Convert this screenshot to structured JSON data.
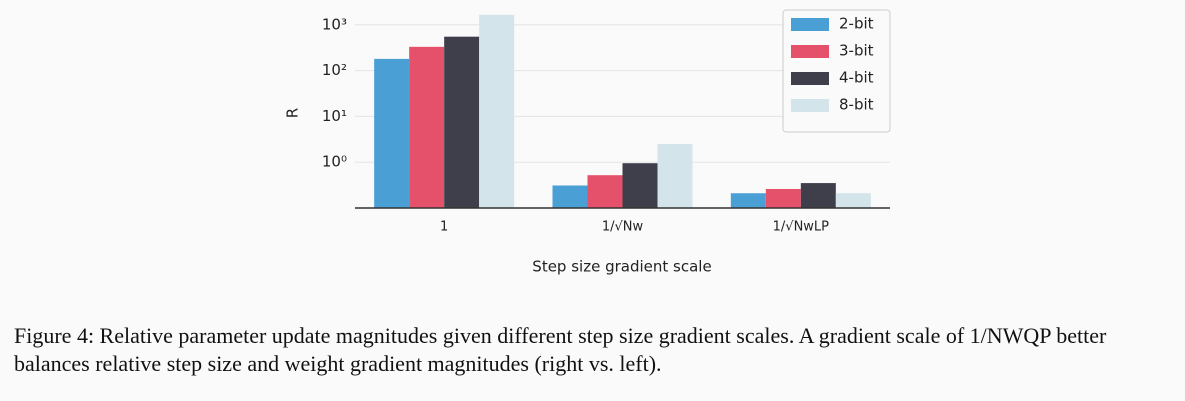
{
  "chart_data": {
    "type": "bar",
    "log_y": true,
    "grid": true,
    "legend": "upper right",
    "x_label": "Step size gradient scale",
    "y_label": "R",
    "categories": [
      "1",
      "1/√Nw",
      "1/√NwLP"
    ],
    "series": [
      {
        "name": "2-bit",
        "color": "#4a9fd4",
        "values": [
          180,
          0.31,
          0.21
        ]
      },
      {
        "name": "3-bit",
        "color": "#e5506a",
        "values": [
          330,
          0.52,
          0.26
        ]
      },
      {
        "name": "4-bit",
        "color": "#3f3f4c",
        "values": [
          550,
          0.95,
          0.35
        ]
      },
      {
        "name": "8-bit",
        "color": "#d3e4ea",
        "values": [
          1650,
          2.5,
          0.21
        ]
      }
    ],
    "ylim": [
      0.1,
      2000
    ],
    "yticks": [
      {
        "value": 1,
        "label": "10⁰"
      },
      {
        "value": 10,
        "label": "10¹"
      },
      {
        "value": 100,
        "label": "10²"
      },
      {
        "value": 1000,
        "label": "10³"
      }
    ]
  },
  "caption": "Figure 4:  Relative parameter update magnitudes given different step size gradient scales. A gradient scale of 1/NWQP better balances relative step size and weight gradient magnitudes (right vs. left)."
}
